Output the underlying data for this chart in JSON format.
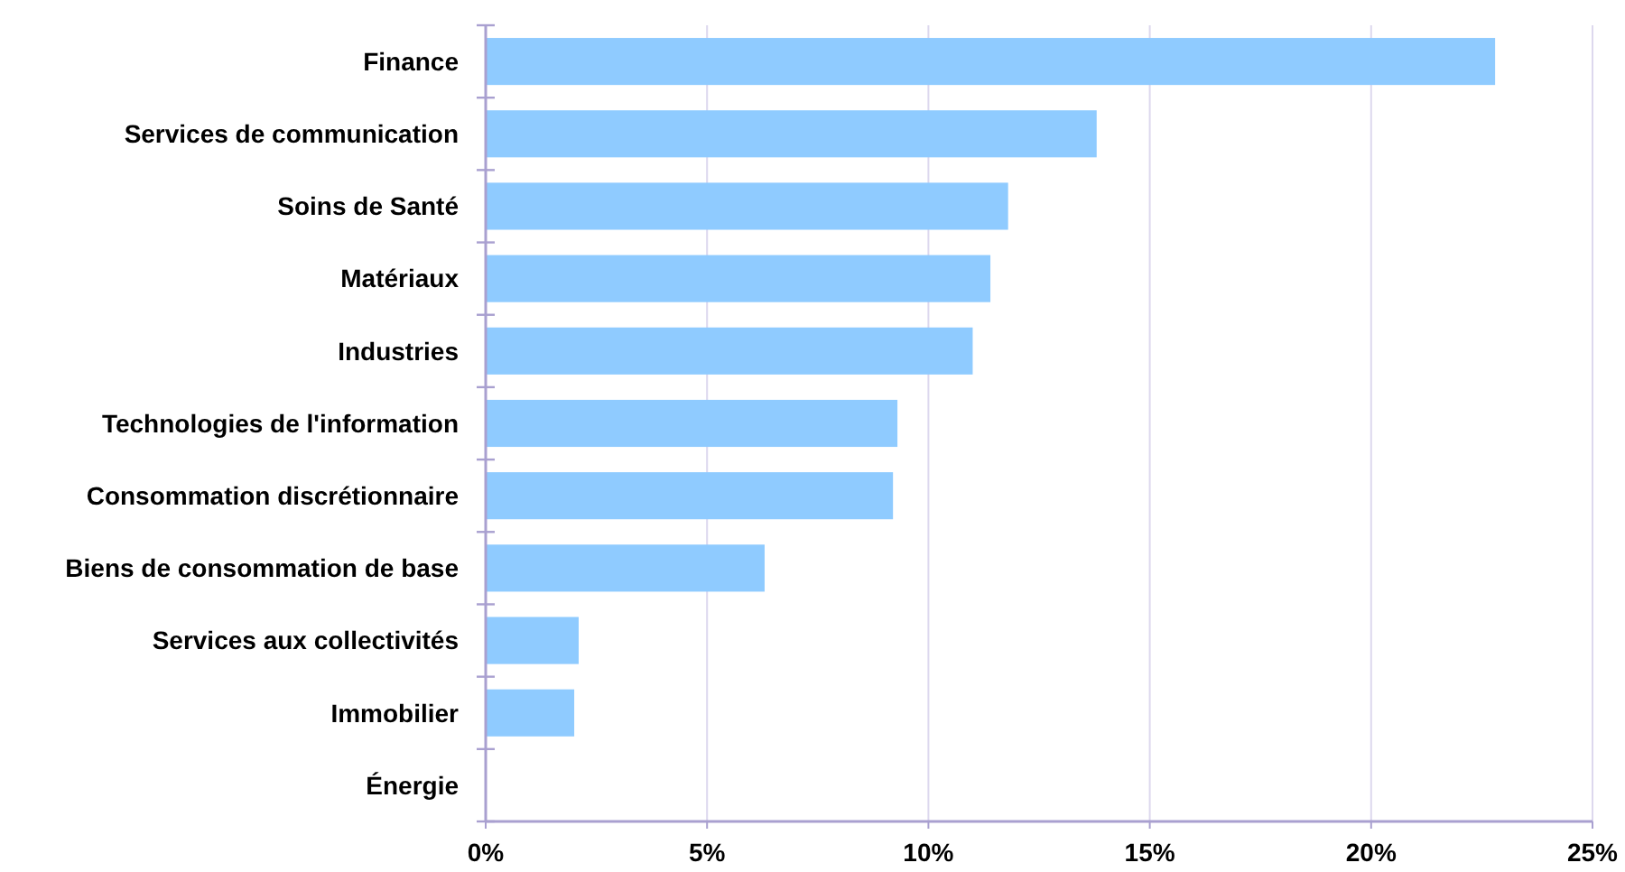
{
  "chart_data": {
    "type": "bar",
    "orientation": "horizontal",
    "categories": [
      "Finance",
      "Services de communication",
      "Soins de Santé",
      "Matériaux",
      "Industries",
      "Technologies de l'information",
      "Consommation discrétionnaire",
      "Biens de consommation de base",
      "Services aux collectivités",
      "Immobilier",
      "Énergie"
    ],
    "values": [
      22.8,
      13.8,
      11.8,
      11.4,
      11.0,
      9.3,
      9.2,
      6.3,
      2.1,
      2.0,
      0
    ],
    "color": "#8fcbff",
    "xlim": [
      0,
      25
    ],
    "xticks": [
      {
        "value": 0,
        "label": "0%"
      },
      {
        "value": 5,
        "label": "5%"
      },
      {
        "value": 10,
        "label": "10%"
      },
      {
        "value": 15,
        "label": "15%"
      },
      {
        "value": 20,
        "label": "20%"
      },
      {
        "value": 25,
        "label": "25%"
      }
    ],
    "grid": "x"
  }
}
